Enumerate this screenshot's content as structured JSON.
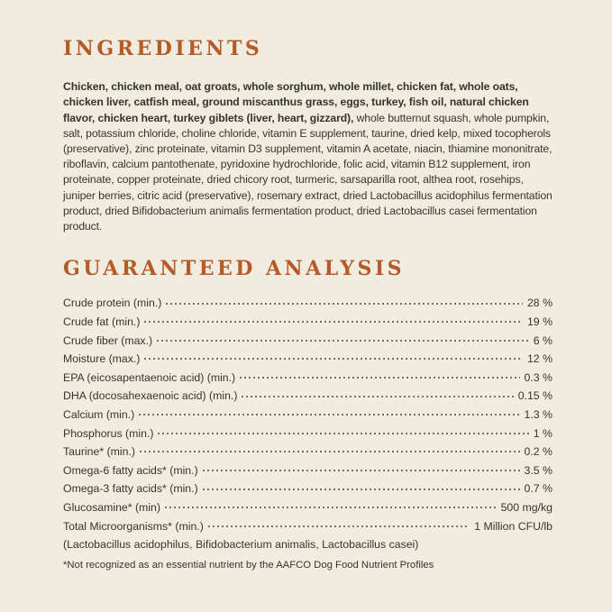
{
  "colors": {
    "background": "#f0ecdf",
    "heading": "#b65b28",
    "text": "#36342e"
  },
  "ingredients": {
    "heading": "INGREDIENTS",
    "bold_text": "Chicken, chicken meal, oat groats, whole sorghum, whole millet, chicken fat, whole oats, chicken liver, catfish meal, ground miscanthus grass, eggs, turkey, fish oil, natural chicken flavor, chicken heart, turkey giblets (liver, heart, gizzard),",
    "regular_text": " whole butternut squash, whole pumpkin, salt, potassium chloride, choline chloride, vitamin E supplement, taurine, dried kelp, mixed tocopherols (preservative), zinc proteinate, vitamin D3 supplement, vitamin A acetate, niacin, thiamine mononitrate, riboflavin, calcium pantothenate, pyridoxine hydrochloride, folic acid, vitamin B12 supplement, iron proteinate, copper proteinate, dried chicory root, turmeric, sarsaparilla root, althea root, rosehips, juniper berries, citric acid (preservative), rosemary extract, dried Lactobacillus acidophilus fermentation product, dried Bifidobacterium animalis fermentation product, dried Lactobacillus casei fermentation product."
  },
  "guaranteed_analysis": {
    "heading": "GUARANTEED ANALYSIS",
    "rows": [
      {
        "name": "Crude protein (min.)",
        "value": "28 %"
      },
      {
        "name": "Crude fat (min.)",
        "value": "19 %"
      },
      {
        "name": "Crude fiber (max.)",
        "value": "6 %"
      },
      {
        "name": "Moisture (max.)",
        "value": "12 %"
      },
      {
        "name": "EPA (eicosapentaenoic acid) (min.)",
        "value": "0.3 %"
      },
      {
        "name": "DHA (docosahexaenoic acid) (min.)",
        "value": "0.15 %"
      },
      {
        "name": "Calcium (min.)",
        "value": "1.3 %"
      },
      {
        "name": "Phosphorus (min.)",
        "value": "1 %"
      },
      {
        "name": "Taurine* (min.)",
        "value": "0.2 %"
      },
      {
        "name": "Omega-6 fatty acids* (min.)",
        "value": "3.5 %"
      },
      {
        "name": "Omega-3 fatty acids* (min.)",
        "value": "0.7 %"
      },
      {
        "name": "Glucosamine* (min)",
        "value": "500 mg/kg"
      },
      {
        "name": "Total Microorganisms* (min.)",
        "value": "1 Million CFU/lb"
      }
    ],
    "microorganisms_detail": "(Lactobacillus acidophilus, Bifidobacterium animalis, Lactobacillus casei)",
    "footnote": "*Not recognized as an essential nutrient by the AAFCO Dog Food Nutrient Profiles"
  }
}
